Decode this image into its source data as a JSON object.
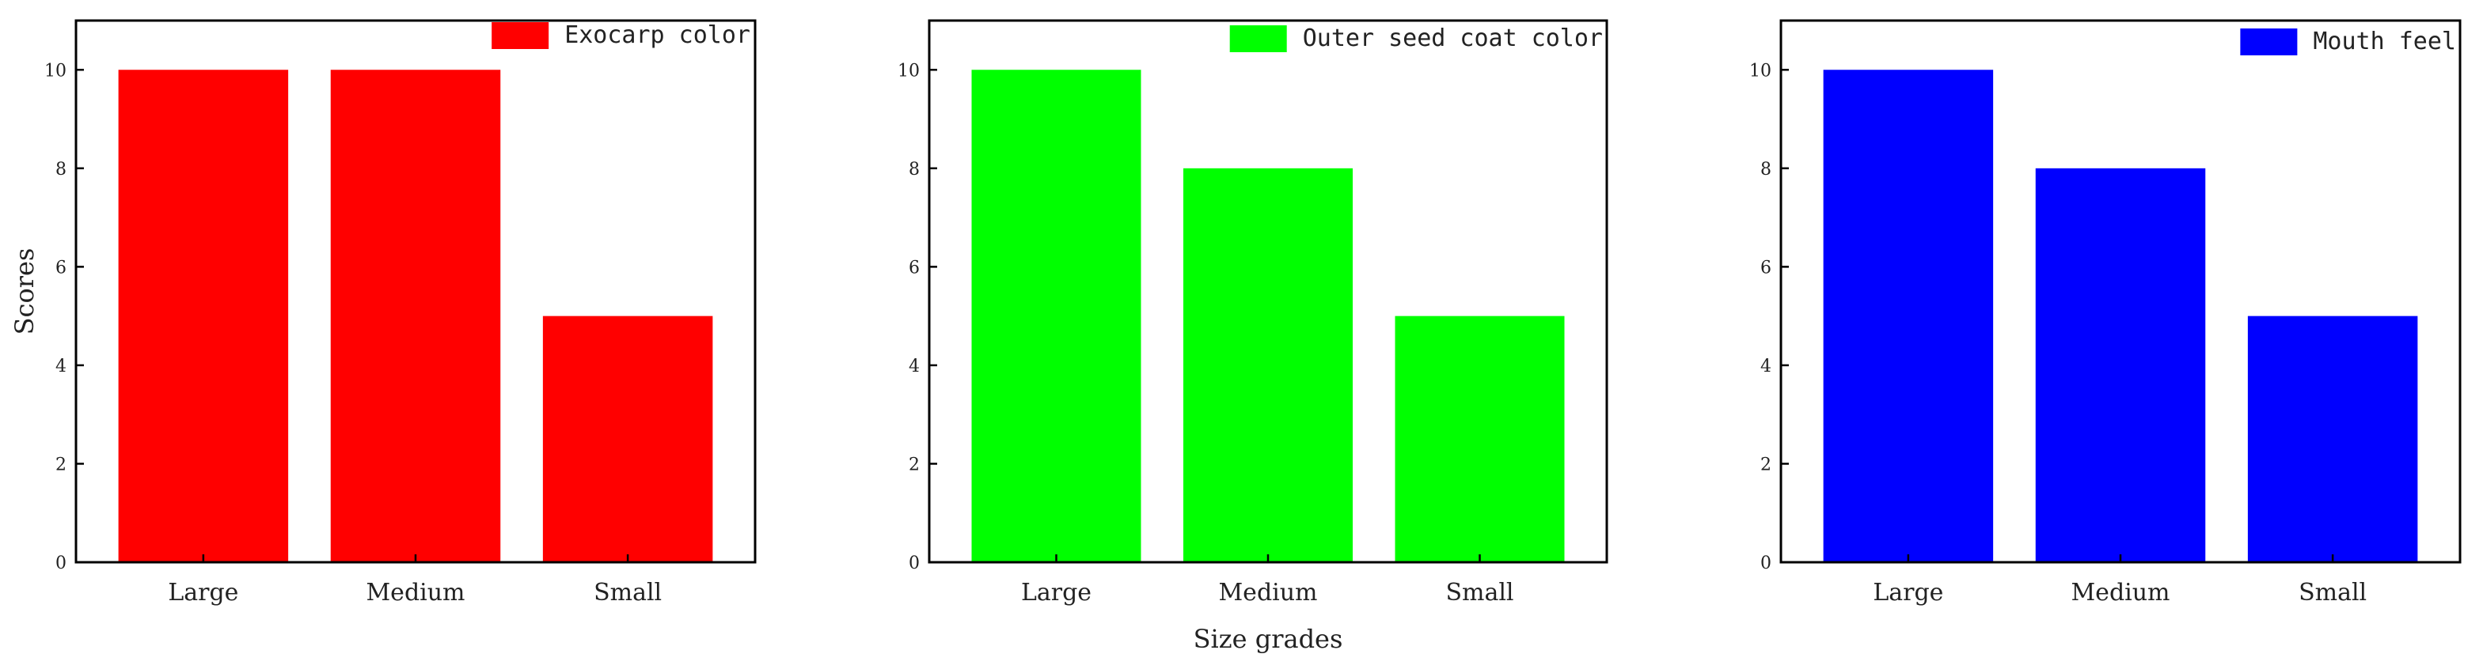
{
  "chart_data": [
    {
      "type": "bar",
      "categories": [
        "Large",
        "Medium",
        "Small"
      ],
      "series": [
        {
          "name": "Exocarp color",
          "values": [
            10,
            10,
            5
          ],
          "color": "#ff0000"
        }
      ],
      "ylabel": "Scores",
      "xlabel": "",
      "ylim": [
        0,
        11
      ],
      "yticks": [
        0,
        2,
        4,
        6,
        8,
        10
      ],
      "legend": "top-right",
      "grid": false
    },
    {
      "type": "bar",
      "categories": [
        "Large",
        "Medium",
        "Small"
      ],
      "series": [
        {
          "name": "Outer seed coat color",
          "values": [
            10,
            8,
            5
          ],
          "color": "#00ff00"
        }
      ],
      "ylabel": "",
      "xlabel": "Size grades",
      "ylim": [
        0,
        11
      ],
      "yticks": [
        0,
        2,
        4,
        6,
        8,
        10
      ],
      "legend": "top-right",
      "grid": false
    },
    {
      "type": "bar",
      "categories": [
        "Large",
        "Medium",
        "Small"
      ],
      "series": [
        {
          "name": "Mouth feel",
          "values": [
            10,
            8,
            5
          ],
          "color": "#0000ff"
        }
      ],
      "ylabel": "",
      "xlabel": "",
      "ylim": [
        0,
        11
      ],
      "yticks": [
        0,
        2,
        4,
        6,
        8,
        10
      ],
      "legend": "top-right",
      "grid": false
    }
  ]
}
